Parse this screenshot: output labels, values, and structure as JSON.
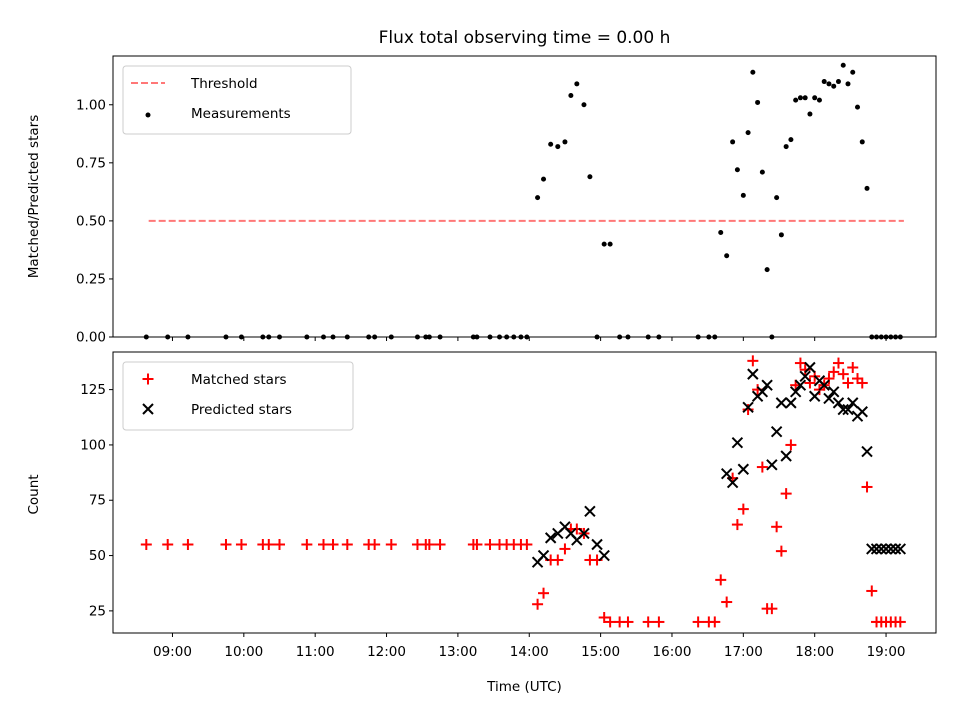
{
  "figure": {
    "title": "Flux total observing time = 0.00 h",
    "xlabel": "Time (UTC)",
    "xticks": [
      "09:00",
      "10:00",
      "11:00",
      "12:00",
      "13:00",
      "14:00",
      "15:00",
      "16:00",
      "17:00",
      "18:00",
      "19:00"
    ]
  },
  "chart_data": [
    {
      "type": "scatter",
      "panel": "top",
      "ylabel": "Matched/Predicted stars",
      "ylim": [
        0,
        1.21
      ],
      "yticks": [
        "0.00",
        "0.25",
        "0.50",
        "0.75",
        "1.00"
      ],
      "legend_position": "upper-left",
      "threshold": {
        "name": "Threshold",
        "value": 0.5,
        "x_range": [
          "08:40",
          "19:15"
        ],
        "color": "#ff7777"
      },
      "series": [
        {
          "name": "Measurements",
          "color": "#000000",
          "x": [
            "08:38",
            "08:56",
            "09:13",
            "09:45",
            "09:58",
            "10:16",
            "10:21",
            "10:30",
            "10:53",
            "11:07",
            "11:15",
            "11:27",
            "11:45",
            "11:50",
            "12:04",
            "12:26",
            "12:33",
            "12:36",
            "12:45",
            "13:13",
            "13:16",
            "13:27",
            "13:35",
            "13:41",
            "13:47",
            "13:53",
            "13:58",
            "14:07",
            "14:12",
            "14:18",
            "14:24",
            "14:30",
            "14:35",
            "14:40",
            "14:46",
            "14:51",
            "14:57",
            "15:03",
            "15:08",
            "15:16",
            "15:23",
            "15:40",
            "15:49",
            "16:22",
            "16:31",
            "16:36",
            "16:41",
            "16:46",
            "16:51",
            "16:55",
            "17:00",
            "17:04",
            "17:08",
            "17:12",
            "17:16",
            "17:20",
            "17:24",
            "17:28",
            "17:32",
            "17:36",
            "17:40",
            "17:44",
            "17:48",
            "17:52",
            "17:56",
            "18:00",
            "18:04",
            "18:08",
            "18:12",
            "18:16",
            "18:20",
            "18:24",
            "18:28",
            "18:32",
            "18:36",
            "18:40",
            "18:44",
            "18:48",
            "18:52",
            "18:56",
            "19:00",
            "19:04",
            "19:08",
            "19:12"
          ],
          "y": [
            0,
            0,
            0,
            0,
            0,
            0,
            0,
            0,
            0,
            0,
            0,
            0,
            0,
            0,
            0,
            0,
            0,
            0,
            0,
            0,
            0,
            0,
            0,
            0,
            0,
            0,
            0,
            0.6,
            0.68,
            0.83,
            0.82,
            0.84,
            1.04,
            1.09,
            1.0,
            0.69,
            0,
            0.4,
            0.4,
            0,
            0,
            0,
            0,
            0,
            0,
            0,
            0.45,
            0.35,
            0.84,
            0.72,
            0.61,
            0.88,
            1.14,
            1.01,
            0.71,
            0.29,
            0,
            0.6,
            0.44,
            0.82,
            0.85,
            1.02,
            1.03,
            1.03,
            0.96,
            1.03,
            1.02,
            1.1,
            1.09,
            1.08,
            1.1,
            1.17,
            1.09,
            1.14,
            0.99,
            0.84,
            0.64,
            0,
            0,
            0,
            0,
            0,
            0,
            0
          ]
        }
      ]
    },
    {
      "type": "scatter",
      "panel": "bottom",
      "ylabel": "Count",
      "ylim": [
        15,
        142
      ],
      "yticks": [
        "25",
        "50",
        "75",
        "100",
        "125"
      ],
      "legend_position": "upper-left",
      "series": [
        {
          "name": "Matched stars",
          "marker": "+",
          "color": "#ff0000",
          "x": [
            "08:38",
            "08:56",
            "09:13",
            "09:45",
            "09:58",
            "10:16",
            "10:21",
            "10:30",
            "10:53",
            "11:07",
            "11:15",
            "11:27",
            "11:45",
            "11:50",
            "12:04",
            "12:26",
            "12:33",
            "12:36",
            "12:45",
            "13:13",
            "13:16",
            "13:27",
            "13:35",
            "13:41",
            "13:47",
            "13:53",
            "13:58",
            "14:07",
            "14:12",
            "14:18",
            "14:24",
            "14:30",
            "14:35",
            "14:40",
            "14:46",
            "14:51",
            "14:57",
            "15:03",
            "15:08",
            "15:16",
            "15:23",
            "15:40",
            "15:49",
            "16:22",
            "16:31",
            "16:36",
            "16:41",
            "16:46",
            "16:51",
            "16:55",
            "17:00",
            "17:04",
            "17:08",
            "17:12",
            "17:16",
            "17:20",
            "17:24",
            "17:28",
            "17:32",
            "17:36",
            "17:40",
            "17:44",
            "17:48",
            "17:52",
            "17:56",
            "18:00",
            "18:04",
            "18:08",
            "18:12",
            "18:16",
            "18:20",
            "18:24",
            "18:28",
            "18:32",
            "18:36",
            "18:40",
            "18:44",
            "18:48",
            "18:52",
            "18:56",
            "19:00",
            "19:04",
            "19:08",
            "19:12"
          ],
          "y": [
            55,
            55,
            55,
            55,
            55,
            55,
            55,
            55,
            55,
            55,
            55,
            55,
            55,
            55,
            55,
            55,
            55,
            55,
            55,
            55,
            55,
            55,
            55,
            55,
            55,
            55,
            55,
            28,
            33,
            48,
            48,
            53,
            62,
            62,
            60,
            48,
            48,
            22,
            20,
            20,
            20,
            20,
            20,
            20,
            20,
            20,
            39,
            29,
            85,
            64,
            71,
            116,
            138,
            125,
            90,
            26,
            26,
            63,
            52,
            78,
            100,
            127,
            137,
            134,
            128,
            131,
            125,
            127,
            130,
            133,
            137,
            132,
            128,
            135,
            130,
            128,
            81,
            34,
            20,
            20,
            20,
            20,
            20,
            20
          ]
        },
        {
          "name": "Predicted stars",
          "marker": "x",
          "color": "#000000",
          "x": [
            "14:07",
            "14:12",
            "14:18",
            "14:24",
            "14:30",
            "14:35",
            "14:40",
            "14:46",
            "14:51",
            "14:57",
            "15:03",
            "16:46",
            "16:51",
            "16:55",
            "17:00",
            "17:04",
            "17:08",
            "17:12",
            "17:16",
            "17:20",
            "17:24",
            "17:28",
            "17:32",
            "17:36",
            "17:40",
            "17:44",
            "17:48",
            "17:52",
            "17:56",
            "18:00",
            "18:04",
            "18:08",
            "18:12",
            "18:16",
            "18:20",
            "18:24",
            "18:28",
            "18:32",
            "18:36",
            "18:40",
            "18:44",
            "18:48",
            "18:52",
            "18:56",
            "19:00",
            "19:04",
            "19:08",
            "19:12"
          ],
          "y": [
            47,
            50,
            58,
            60,
            63,
            60,
            57,
            60,
            70,
            55,
            50,
            87,
            83,
            101,
            89,
            117,
            132,
            122,
            124,
            127,
            91,
            106,
            119,
            95,
            119,
            124,
            127,
            131,
            135,
            122,
            129,
            127,
            121,
            124,
            119,
            116,
            116,
            119,
            113,
            115,
            97,
            53,
            53,
            53,
            53,
            53,
            53,
            53
          ]
        }
      ]
    }
  ]
}
